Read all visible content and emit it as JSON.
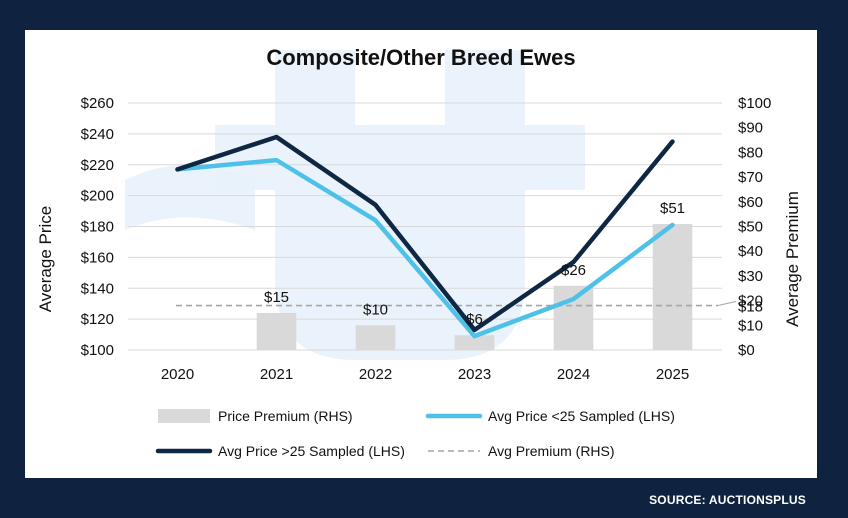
{
  "source_label": "SOURCE: AUCTIONSPLUS",
  "colors": {
    "background": "#0f2340",
    "panel": "#ffffff",
    "premium_bar": "#d9d9d9",
    "under25_line": "#4fc1e8",
    "over25_line": "#0e2742",
    "avg_premium_line": "#a6a6a6",
    "grid": "#d9d9d9",
    "watermark": "#e8f2fb"
  },
  "chart_data": {
    "type": "bar-line-combo",
    "title": "Composite/Other Breed Ewes",
    "xlabel": "",
    "ylabel_left": "Average Price",
    "ylabel_right": "Average Premium",
    "categories": [
      "2020",
      "2021",
      "2022",
      "2023",
      "2024",
      "2025"
    ],
    "ylim_left": [
      100,
      260
    ],
    "yticks_left": [
      100,
      120,
      140,
      160,
      180,
      200,
      220,
      240,
      260
    ],
    "ytick_labels_left": [
      "$100",
      "$120",
      "$140",
      "$160",
      "$180",
      "$200",
      "$220",
      "$240",
      "$260"
    ],
    "ylim_right": [
      0,
      100
    ],
    "yticks_right": [
      0,
      10,
      20,
      30,
      40,
      50,
      60,
      70,
      80,
      90,
      100
    ],
    "ytick_labels_right": [
      "$0",
      "$10",
      "$20",
      "$30",
      "$40",
      "$50",
      "$60",
      "$70",
      "$80",
      "$90",
      "$100"
    ],
    "grid": true,
    "legend_position": "bottom",
    "series": [
      {
        "name": "Price Premium (RHS)",
        "kind": "bar",
        "axis": "right",
        "values": [
          null,
          15,
          10,
          6,
          26,
          51
        ],
        "data_labels": [
          "",
          "$15",
          "$10",
          "$6",
          "$26",
          "$51"
        ]
      },
      {
        "name": "Avg Price <25 Sampled (LHS)",
        "kind": "line",
        "axis": "left",
        "values": [
          217,
          223,
          184,
          109,
          133,
          181
        ]
      },
      {
        "name": "Avg Price >25 Sampled (LHS)",
        "kind": "line",
        "axis": "left",
        "values": [
          217,
          238,
          194,
          113,
          157,
          235
        ]
      },
      {
        "name": "Avg Premium (RHS)",
        "kind": "dashed-line",
        "axis": "right",
        "values": [
          18,
          18,
          18,
          18,
          18,
          18
        ],
        "end_label": "$18"
      }
    ]
  }
}
